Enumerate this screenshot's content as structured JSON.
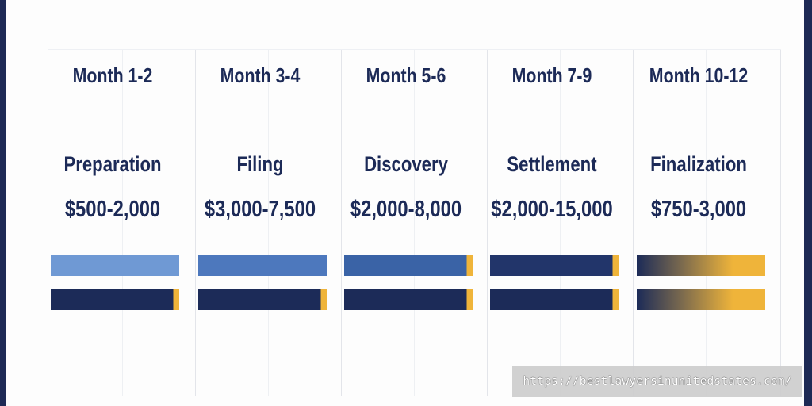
{
  "columns": [
    {
      "month": "Month 1-2",
      "phase": "Preparation",
      "cost": "$500-2,000"
    },
    {
      "month": "Month 3-4",
      "phase": "Filing",
      "cost": "$3,000-7,500"
    },
    {
      "month": "Month 5-6",
      "phase": "Discovery",
      "cost": "$2,000-8,000"
    },
    {
      "month": "Month 7-9",
      "phase": "Settlement",
      "cost": "$2,000-15,000"
    },
    {
      "month": "Month 10-12",
      "phase": "Finalization",
      "cost": "$750-3,000"
    }
  ],
  "watermark": "https://bestlawyersinunitedstates.com/",
  "colors": {
    "frame": "#1e2a55",
    "text": "#1c2a57",
    "bar_light": "#6f99d4",
    "bar_mid": "#3a63a6",
    "bar_dark": "#1c2b58",
    "accent": "#efb43a"
  }
}
